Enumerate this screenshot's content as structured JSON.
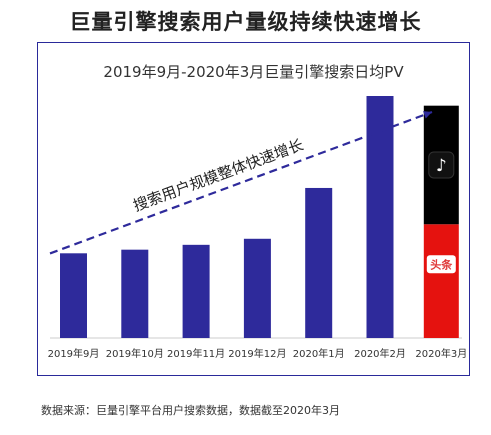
{
  "title": "巨量引擎搜索用户量级持续快速增长",
  "source_note": "数据来源：巨量引擎平台用户搜索数据，数据截至2020年3月",
  "colors": {
    "bar": "#2e2a9b",
    "frame": "#2a2a9a",
    "trend": "#2e2a9b",
    "douyin_segment": "#000000",
    "toutiao_segment": "#e5120f",
    "toutiao_badge": "#e03a3a"
  },
  "icons": [
    "douyin-logo-icon",
    "toutiao-logo-icon"
  ],
  "chart_data": {
    "type": "bar",
    "title": "2019年9月-2020年3月巨量引擎搜索日均PV",
    "xlabel": "",
    "ylabel": "",
    "ylim": [
      0,
      100
    ],
    "grid": false,
    "categories": [
      "2019年9月",
      "2019年10月",
      "2019年11月",
      "2019年12月",
      "2020年1月",
      "2020年2月",
      "2020年3月"
    ],
    "values": [
      35,
      36.5,
      38.5,
      41,
      62,
      100,
      96
    ],
    "stacked_last": {
      "category": "2020年3月",
      "segments": [
        {
          "name": "douyin",
          "value": 49,
          "color": "#000000"
        },
        {
          "name": "toutiao",
          "value": 47,
          "color": "#e5120f"
        }
      ]
    },
    "annotations": [
      {
        "type": "trend-line",
        "text": "搜索用户规模整体快速增长",
        "from_value": 37,
        "to_value": 100
      }
    ],
    "badge_text": "头条"
  }
}
